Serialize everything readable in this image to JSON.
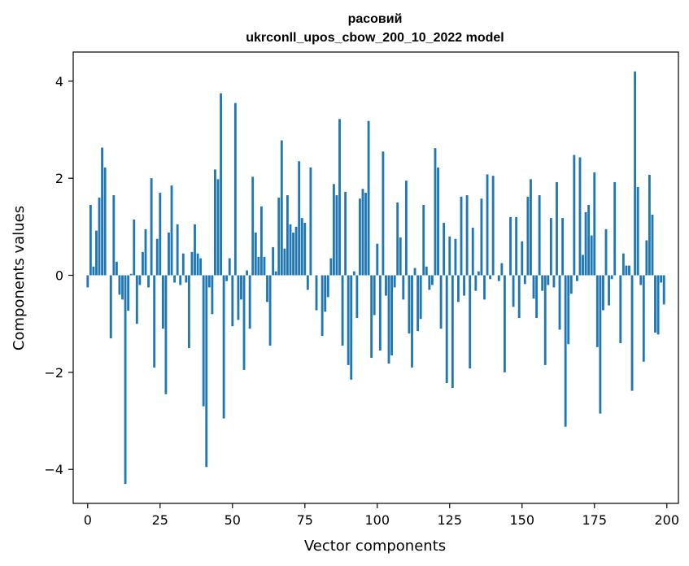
{
  "chart_data": {
    "type": "bar",
    "title": "расовий",
    "subtitle": "ukrconll_upos_cbow_200_10_2022 model",
    "xlabel": "Vector components",
    "ylabel": "Components values",
    "xlim": [
      -5,
      204
    ],
    "ylim": [
      -4.7,
      4.6
    ],
    "xticks": [
      0,
      25,
      50,
      75,
      100,
      125,
      150,
      175,
      200
    ],
    "xtick_labels": [
      "0",
      "25",
      "50",
      "75",
      "100",
      "125",
      "150",
      "175",
      "200"
    ],
    "yticks": [
      -4,
      -2,
      0,
      2,
      4
    ],
    "ytick_labels": [
      "−4",
      "−2",
      "0",
      "2",
      "4"
    ],
    "grid": false,
    "bar_color": "#1f77b4",
    "x": [
      0,
      1,
      2,
      3,
      4,
      5,
      6,
      7,
      8,
      9,
      10,
      11,
      12,
      13,
      14,
      15,
      16,
      17,
      18,
      19,
      20,
      21,
      22,
      23,
      24,
      25,
      26,
      27,
      28,
      29,
      30,
      31,
      32,
      33,
      34,
      35,
      36,
      37,
      38,
      39,
      40,
      41,
      42,
      43,
      44,
      45,
      46,
      47,
      48,
      49,
      50,
      51,
      52,
      53,
      54,
      55,
      56,
      57,
      58,
      59,
      60,
      61,
      62,
      63,
      64,
      65,
      66,
      67,
      68,
      69,
      70,
      71,
      72,
      73,
      74,
      75,
      76,
      77,
      78,
      79,
      80,
      81,
      82,
      83,
      84,
      85,
      86,
      87,
      88,
      89,
      90,
      91,
      92,
      93,
      94,
      95,
      96,
      97,
      98,
      99,
      100,
      101,
      102,
      103,
      104,
      105,
      106,
      107,
      108,
      109,
      110,
      111,
      112,
      113,
      114,
      115,
      116,
      117,
      118,
      119,
      120,
      121,
      122,
      123,
      124,
      125,
      126,
      127,
      128,
      129,
      130,
      131,
      132,
      133,
      134,
      135,
      136,
      137,
      138,
      139,
      140,
      141,
      142,
      143,
      144,
      145,
      146,
      147,
      148,
      149,
      150,
      151,
      152,
      153,
      154,
      155,
      156,
      157,
      158,
      159,
      160,
      161,
      162,
      163,
      164,
      165,
      166,
      167,
      168,
      169,
      170,
      171,
      172,
      173,
      174,
      175,
      176,
      177,
      178,
      179,
      180,
      181,
      182,
      183,
      184,
      185,
      186,
      187,
      188,
      189,
      190,
      191,
      192,
      193,
      194,
      195,
      196,
      197,
      198,
      199
    ],
    "values": [
      -0.25,
      1.45,
      0.18,
      0.92,
      1.6,
      2.63,
      2.22,
      0.0,
      -1.3,
      1.65,
      0.28,
      -0.4,
      -0.5,
      -4.3,
      -0.73,
      0.03,
      1.15,
      -1.0,
      -0.2,
      0.48,
      0.95,
      -0.25,
      2.0,
      -1.9,
      0.75,
      1.7,
      -1.1,
      -2.45,
      0.88,
      1.85,
      -0.15,
      1.05,
      -0.2,
      0.45,
      -0.15,
      -1.5,
      0.48,
      1.05,
      0.45,
      0.35,
      -2.7,
      -3.95,
      -0.25,
      -0.8,
      2.18,
      1.98,
      3.75,
      -2.95,
      -0.12,
      0.35,
      -1.05,
      3.55,
      -0.92,
      -0.5,
      -1.95,
      0.1,
      -1.1,
      2.03,
      0.88,
      0.38,
      1.42,
      0.38,
      -0.55,
      -1.45,
      0.58,
      0.08,
      1.6,
      2.78,
      0.55,
      1.65,
      1.05,
      0.88,
      1.0,
      2.35,
      1.18,
      1.08,
      -0.3,
      2.22,
      0.0,
      -0.72,
      0.0,
      -1.25,
      -0.75,
      -0.45,
      0.35,
      1.88,
      1.65,
      3.22,
      -1.45,
      1.72,
      -1.85,
      -2.15,
      0.08,
      -0.88,
      1.58,
      1.78,
      1.7,
      3.18,
      -1.7,
      -0.82,
      0.65,
      -1.55,
      2.55,
      -0.42,
      -1.82,
      -1.65,
      -0.25,
      1.5,
      0.78,
      -0.5,
      1.95,
      -1.2,
      -1.9,
      0.15,
      -1.15,
      -0.9,
      1.45,
      0.18,
      -0.3,
      -0.2,
      2.62,
      2.22,
      -1.1,
      1.08,
      -2.22,
      0.8,
      -2.32,
      0.75,
      -0.55,
      1.62,
      -0.42,
      1.65,
      -1.92,
      0.98,
      -0.32,
      0.08,
      1.58,
      -0.5,
      2.08,
      -0.08,
      2.05,
      0.0,
      -0.12,
      0.25,
      -2.0,
      0.0,
      1.2,
      -0.65,
      1.2,
      -0.88,
      0.7,
      -0.18,
      1.62,
      1.98,
      -0.48,
      -0.88,
      1.65,
      -0.32,
      -1.85,
      -0.2,
      1.18,
      -0.25,
      1.92,
      -1.12,
      1.18,
      -3.12,
      -1.42,
      -0.38,
      2.48,
      -0.12,
      2.43,
      0.42,
      1.3,
      1.45,
      0.82,
      2.12,
      -1.48,
      -2.85,
      -0.72,
      0.95,
      -0.62,
      -0.08,
      1.92,
      0.0,
      -1.4,
      0.45,
      0.2,
      0.2,
      -2.38,
      4.2,
      1.82,
      -0.2,
      -1.78,
      0.72,
      2.07,
      1.25,
      -1.18,
      -1.22,
      -0.15,
      -0.6
    ]
  }
}
